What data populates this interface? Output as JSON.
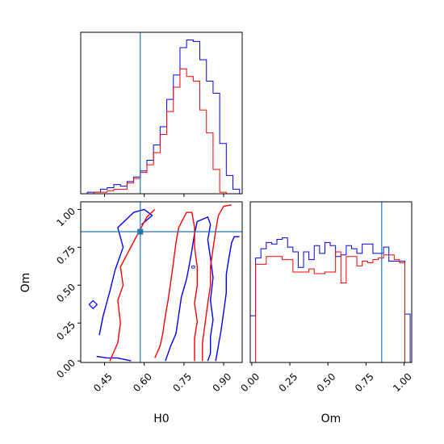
{
  "chart_data": {
    "type": "corner",
    "parameters": [
      "H0",
      "Om"
    ],
    "xlabels": {
      "H0": "H0",
      "Om": "Om"
    },
    "ylabels": {
      "Om": "Om"
    },
    "ticks": {
      "H0": [
        0.45,
        0.6,
        0.75,
        0.9
      ],
      "H0_labels": [
        "0.45",
        "0.60",
        "0.75",
        "0.90"
      ],
      "Om": [
        0.0,
        0.25,
        0.5,
        0.75,
        1.0
      ],
      "Om_labels": [
        "0.00",
        "0.25",
        "0.50",
        "0.75",
        "1.00"
      ]
    },
    "ranges": {
      "H0": [
        0.36,
        0.97
      ],
      "Om": [
        -0.01,
        1.05
      ]
    },
    "truth": {
      "H0": 0.585,
      "Om": 0.853
    },
    "colors": {
      "series_a": "#0000ff",
      "series_b": "#ff0000",
      "truth": "#1f77b4"
    },
    "h0_hist": {
      "bin_edges": [
        0.36,
        0.385,
        0.41,
        0.435,
        0.46,
        0.485,
        0.51,
        0.535,
        0.56,
        0.585,
        0.61,
        0.635,
        0.66,
        0.685,
        0.71,
        0.735,
        0.76,
        0.785,
        0.81,
        0.835,
        0.86,
        0.885,
        0.91,
        0.935,
        0.96
      ],
      "blue": [
        0,
        1,
        1,
        3,
        4,
        6,
        5,
        8,
        11,
        15,
        22,
        32,
        44,
        62,
        78,
        96,
        101,
        100,
        88,
        74,
        66,
        33,
        12,
        3
      ],
      "red": [
        0,
        0,
        1,
        1,
        2,
        3,
        3,
        7,
        10,
        14,
        19,
        27,
        39,
        54,
        70,
        82,
        77,
        74,
        55,
        40,
        16,
        1,
        0,
        0
      ]
    },
    "om_hist": {
      "bin_edges": [
        -0.01,
        0.025,
        0.06,
        0.095,
        0.13,
        0.165,
        0.2,
        0.235,
        0.27,
        0.305,
        0.34,
        0.375,
        0.41,
        0.445,
        0.48,
        0.515,
        0.55,
        0.585,
        0.62,
        0.655,
        0.69,
        0.725,
        0.76,
        0.795,
        0.83,
        0.865,
        0.9,
        0.935,
        0.97,
        1.005,
        1.04
      ],
      "blue": [
        0.3,
        0.67,
        0.73,
        0.77,
        0.76,
        0.79,
        0.8,
        0.74,
        0.71,
        0.61,
        0.71,
        0.66,
        0.75,
        0.7,
        0.77,
        0.75,
        0.68,
        0.69,
        0.75,
        0.73,
        0.7,
        0.76,
        0.76,
        0.7,
        0.7,
        0.74,
        0.65,
        0.65,
        0.65,
        0.31
      ],
      "red": [
        0.0,
        0.63,
        0.63,
        0.68,
        0.68,
        0.68,
        0.66,
        0.66,
        0.58,
        0.58,
        0.58,
        0.6,
        0.57,
        0.57,
        0.58,
        0.58,
        0.71,
        0.51,
        0.68,
        0.68,
        0.62,
        0.65,
        0.64,
        0.66,
        0.67,
        0.69,
        0.69,
        0.66,
        0.64,
        0.0
      ]
    },
    "contours": [
      {
        "color": "#0000ff",
        "points": [
          [
            0.43,
            0.17
          ],
          [
            0.445,
            0.3
          ],
          [
            0.47,
            0.46
          ],
          [
            0.49,
            0.6
          ],
          [
            0.52,
            0.75
          ],
          [
            0.5,
            0.88
          ],
          [
            0.56,
            0.98
          ],
          [
            0.6,
            1.0
          ],
          [
            0.63,
            0.96
          ],
          [
            0.59,
            0.9
          ]
        ]
      },
      {
        "color": "#0000ff",
        "points": [
          [
            0.42,
            0.03
          ],
          [
            0.46,
            0.02
          ],
          [
            0.5,
            0.02
          ],
          [
            0.55,
            0.0
          ]
        ]
      },
      {
        "color": "#0000ff",
        "points": [
          [
            0.68,
            0.0
          ],
          [
            0.7,
            0.1
          ],
          [
            0.72,
            0.18
          ],
          [
            0.73,
            0.3
          ],
          [
            0.74,
            0.42
          ],
          [
            0.76,
            0.54
          ],
          [
            0.77,
            0.63
          ],
          [
            0.78,
            0.73
          ],
          [
            0.79,
            0.84
          ],
          [
            0.8,
            0.92
          ],
          [
            0.84,
            0.95
          ],
          [
            0.85,
            0.9
          ],
          [
            0.84,
            0.8
          ],
          [
            0.85,
            0.68
          ],
          [
            0.86,
            0.55
          ],
          [
            0.85,
            0.4
          ],
          [
            0.86,
            0.27
          ],
          [
            0.85,
            0.16
          ],
          [
            0.85,
            0.05
          ],
          [
            0.84,
            0.0
          ]
        ]
      },
      {
        "color": "#0000ff",
        "points": [
          [
            0.87,
            0.0
          ],
          [
            0.88,
            0.1
          ],
          [
            0.89,
            0.2
          ],
          [
            0.9,
            0.32
          ],
          [
            0.91,
            0.45
          ],
          [
            0.91,
            0.57
          ],
          [
            0.92,
            0.68
          ],
          [
            0.93,
            0.78
          ],
          [
            0.94,
            0.82
          ],
          [
            0.96,
            0.82
          ]
        ]
      },
      {
        "color": "#ff0000",
        "points": [
          [
            0.47,
            0.0
          ],
          [
            0.5,
            0.12
          ],
          [
            0.51,
            0.25
          ],
          [
            0.5,
            0.4
          ],
          [
            0.52,
            0.5
          ],
          [
            0.51,
            0.62
          ],
          [
            0.54,
            0.72
          ],
          [
            0.57,
            0.82
          ],
          [
            0.61,
            0.95
          ],
          [
            0.64,
            1.0
          ]
        ]
      },
      {
        "color": "#ff0000",
        "points": [
          [
            0.64,
            0.02
          ],
          [
            0.66,
            0.1
          ],
          [
            0.67,
            0.18
          ],
          [
            0.68,
            0.3
          ],
          [
            0.69,
            0.4
          ],
          [
            0.7,
            0.52
          ],
          [
            0.71,
            0.65
          ],
          [
            0.72,
            0.78
          ],
          [
            0.73,
            0.88
          ],
          [
            0.76,
            0.98
          ],
          [
            0.78,
            0.98
          ],
          [
            0.79,
            0.88
          ],
          [
            0.79,
            0.75
          ],
          [
            0.8,
            0.62
          ],
          [
            0.8,
            0.5
          ],
          [
            0.79,
            0.38
          ],
          [
            0.8,
            0.26
          ],
          [
            0.79,
            0.15
          ],
          [
            0.79,
            0.04
          ],
          [
            0.79,
            0.0
          ]
        ]
      },
      {
        "color": "#ff0000",
        "points": [
          [
            0.82,
            0.0
          ],
          [
            0.82,
            0.12
          ],
          [
            0.83,
            0.25
          ],
          [
            0.84,
            0.38
          ],
          [
            0.85,
            0.5
          ],
          [
            0.85,
            0.62
          ],
          [
            0.86,
            0.74
          ],
          [
            0.87,
            0.86
          ],
          [
            0.88,
            0.96
          ],
          [
            0.9,
            1.02
          ],
          [
            0.93,
            1.03
          ]
        ]
      }
    ]
  }
}
